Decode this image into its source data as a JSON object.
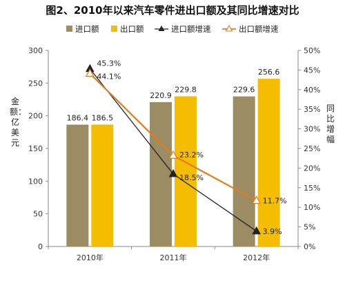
{
  "chart_data": {
    "type": "bar",
    "title": "图2、2010年以来汽车零件进出口额及其同比增速对比",
    "ylabel": "金额：亿美元",
    "y2label": "同比增幅",
    "categories": [
      "2010年",
      "2011年",
      "2012年"
    ],
    "ylim": [
      0,
      300
    ],
    "y2lim": [
      0,
      50
    ],
    "yticks": [
      "0",
      "50",
      "100",
      "150",
      "200",
      "250",
      "300"
    ],
    "y2ticks": [
      "0%",
      "5%",
      "10%",
      "15%",
      "20%",
      "25%",
      "30%",
      "35%",
      "40%",
      "45%",
      "50%"
    ],
    "legend_position": "top",
    "series": [
      {
        "name": "进口额",
        "kind": "bar",
        "axis": "left",
        "values": [
          186.4,
          220.9,
          229.6
        ],
        "labels": [
          "186.4",
          "220.9",
          "229.6"
        ],
        "color": "#9b8c63"
      },
      {
        "name": "出口额",
        "kind": "bar",
        "axis": "left",
        "values": [
          186.5,
          229.8,
          256.6
        ],
        "labels": [
          "186.5",
          "229.8",
          "256.6"
        ],
        "color": "#f5bd00"
      },
      {
        "name": "进口额增速",
        "kind": "line",
        "axis": "right",
        "marker": "filled-triangle",
        "values": [
          45.3,
          18.5,
          3.9
        ],
        "labels": [
          "45.3%",
          "18.5%",
          "3.9%"
        ],
        "color": "#222222"
      },
      {
        "name": "出口额增速",
        "kind": "line",
        "axis": "right",
        "marker": "hollow-triangle",
        "values": [
          44.1,
          23.2,
          11.7
        ],
        "labels": [
          "44.1%",
          "23.2%",
          "11.7%"
        ],
        "color": "#e07b1f"
      }
    ]
  }
}
